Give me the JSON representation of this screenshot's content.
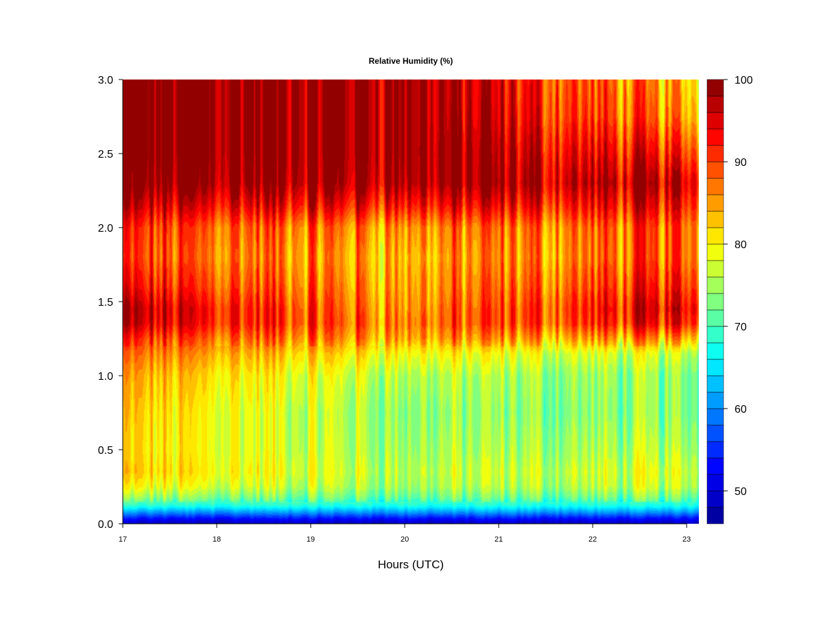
{
  "chart_data": {
    "type": "heatmap",
    "subtype": "filled-contour",
    "title": "Relative Humidity (%)",
    "xlabel": "Hours (UTC)",
    "ylabel": "",
    "xlim": [
      17,
      23.13
    ],
    "ylim": [
      0,
      3
    ],
    "x_ticks": [
      "17",
      "18",
      "19",
      "20",
      "21",
      "22",
      "23"
    ],
    "y_ticks": [
      "0.0",
      "0.5",
      "1.0",
      "1.5",
      "2.0",
      "2.5",
      "3.0"
    ],
    "colorbar": {
      "range": [
        46,
        100
      ],
      "ticks": [
        "50",
        "60",
        "70",
        "80",
        "90",
        "100"
      ],
      "levels": [
        46,
        48,
        50,
        52,
        54,
        56,
        58,
        60,
        62,
        64,
        66,
        68,
        70,
        72,
        74,
        76,
        78,
        80,
        82,
        84,
        86,
        88,
        90,
        92,
        94,
        96,
        98,
        100
      ],
      "palette": "jet",
      "colors": [
        "#00008f",
        "#0000cf",
        "#0000ff",
        "#0040ff",
        "#0080ff",
        "#00bfff",
        "#00ffff",
        "#40ffbf",
        "#80ff80",
        "#bfff40",
        "#ffff00",
        "#ffbf00",
        "#ff8000",
        "#ff4000",
        "#ff0000",
        "#bf0000",
        "#800000"
      ]
    },
    "rh_profile": {
      "heights": [
        0.0,
        0.04,
        0.08,
        0.12,
        0.18,
        0.25,
        0.35,
        0.5,
        0.75,
        1.0,
        1.15,
        1.25,
        1.35,
        1.45,
        1.6,
        1.8,
        2.0,
        2.15,
        2.3,
        2.5,
        2.75,
        3.0
      ],
      "early_hours": {
        "x": 17.0,
        "rh": [
          48,
          54,
          61,
          68,
          74,
          79,
          82,
          81,
          82,
          84,
          87,
          90,
          95,
          96,
          92,
          89,
          90,
          95,
          99,
          100,
          100,
          100
        ]
      },
      "mid_hours": {
        "x": 20.0,
        "rh": [
          48,
          54,
          61,
          67,
          72,
          75,
          76,
          75,
          74,
          76,
          80,
          85,
          87,
          86,
          85,
          84,
          86,
          93,
          98,
          99,
          99,
          99
        ]
      },
      "late_hours": {
        "x": 23.1,
        "rh": [
          48,
          54,
          61,
          67,
          72,
          76,
          77,
          75,
          73,
          73,
          76,
          84,
          92,
          94,
          91,
          88,
          88,
          92,
          95,
          90,
          84,
          82
        ]
      }
    },
    "grid": false,
    "legend": "colorbar-right"
  }
}
